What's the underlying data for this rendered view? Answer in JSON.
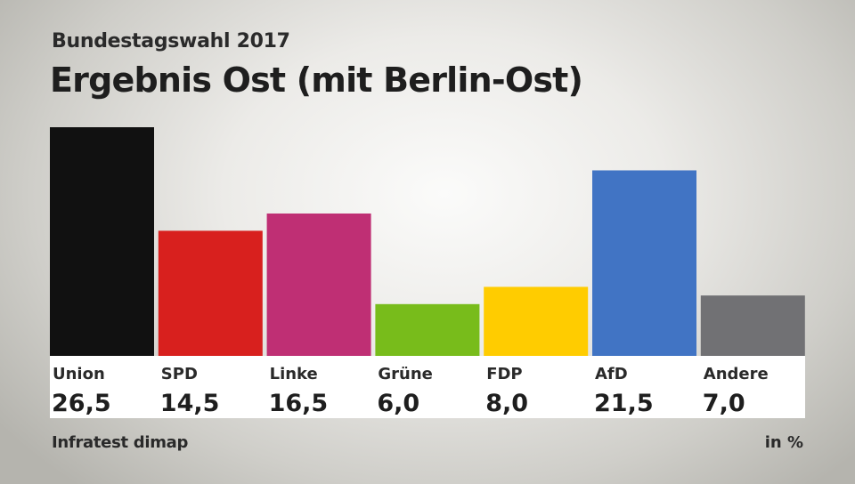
{
  "header": {
    "subtitle": "Bundestagswahl 2017",
    "title": "Ergebnis Ost (mit Berlin-Ost)"
  },
  "footer": {
    "source": "Infratest dimap",
    "unit": "in %"
  },
  "chart_data": {
    "type": "bar",
    "title": "Ergebnis Ost (mit Berlin-Ost)",
    "subtitle": "Bundestagswahl 2017",
    "categories": [
      "Union",
      "SPD",
      "Linke",
      "Grüne",
      "FDP",
      "AfD",
      "Andere"
    ],
    "values": [
      26.5,
      14.5,
      16.5,
      6.0,
      8.0,
      21.5,
      7.0
    ],
    "value_labels": [
      "26,5",
      "14,5",
      "16,5",
      "6,0",
      "8,0",
      "21,5",
      "7,0"
    ],
    "colors": [
      "#111111",
      "#d8201e",
      "#bf2f74",
      "#78bc1b",
      "#ffcc00",
      "#4174c4",
      "#717174"
    ],
    "ylim": [
      0,
      26.5
    ],
    "grid": false,
    "legend": "none",
    "unit": "in %"
  }
}
